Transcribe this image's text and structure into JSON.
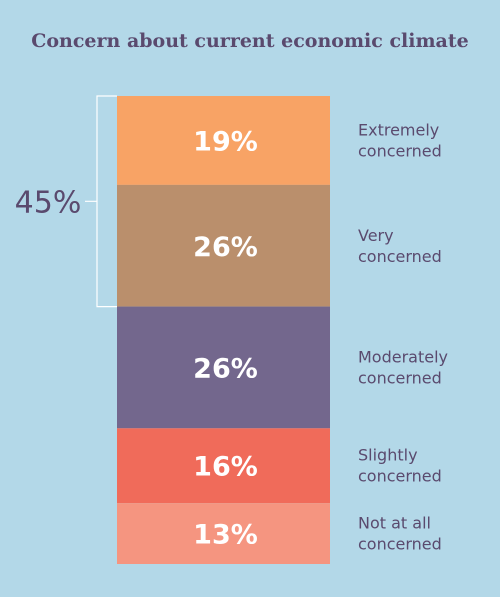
{
  "chart_data": {
    "type": "bar",
    "title": "Concern about current economic climate",
    "stacked": true,
    "segments": [
      {
        "label_lines": [
          "Extremely",
          "concerned"
        ],
        "value": 19,
        "value_label": "19%",
        "color": "#f8a365"
      },
      {
        "label_lines": [
          "Very",
          "concerned"
        ],
        "value": 26,
        "value_label": "26%",
        "color": "#ba8f6c"
      },
      {
        "label_lines": [
          "Moderately",
          "concerned"
        ],
        "value": 26,
        "value_label": "26%",
        "color": "#73678d"
      },
      {
        "label_lines": [
          "Slightly",
          "concerned"
        ],
        "value": 16,
        "value_label": "16%",
        "color": "#f06b5a"
      },
      {
        "label_lines": [
          "Not at all",
          "concerned"
        ],
        "value": 13,
        "value_label": "13%",
        "color": "#f59580"
      }
    ],
    "bracket": {
      "covers": [
        0,
        1
      ],
      "label": "45%",
      "color": "#ffffff"
    },
    "text_color": "#5a4a6e"
  }
}
